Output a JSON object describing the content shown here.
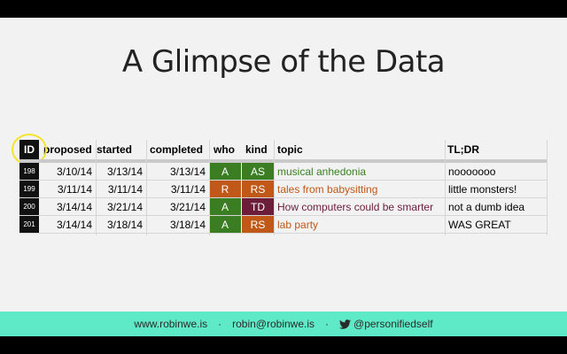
{
  "slide": {
    "title": "A Glimpse of the Data"
  },
  "table": {
    "headers": {
      "id": "ID",
      "proposed": "proposed",
      "started": "started",
      "completed": "completed",
      "who": "who",
      "kind": "kind",
      "topic": "topic",
      "tldr": "TL;DR"
    },
    "rows": [
      {
        "id": "198",
        "proposed": "3/10/14",
        "started": "3/13/14",
        "completed": "3/13/14",
        "who": "A",
        "kind": "AS",
        "topic": "musical anhedonia",
        "tldr": "nooooooo"
      },
      {
        "id": "199",
        "proposed": "3/11/14",
        "started": "3/11/14",
        "completed": "3/11/14",
        "who": "R",
        "kind": "RS",
        "topic": "tales from babysitting",
        "tldr": "little monsters!"
      },
      {
        "id": "200",
        "proposed": "3/14/14",
        "started": "3/21/14",
        "completed": "3/21/14",
        "who": "A",
        "kind": "TD",
        "topic": "How computers could be smarter",
        "tldr": "not a dumb idea"
      },
      {
        "id": "201",
        "proposed": "3/14/14",
        "started": "3/18/14",
        "completed": "3/18/14",
        "who": "A",
        "kind": "RS",
        "topic": "lab party",
        "tldr": "WAS GREAT"
      }
    ]
  },
  "colors": {
    "who_A": "#3a7d22",
    "who_R": "#c0581a",
    "kind_AS": "#3a7d22",
    "kind_RS": "#c0581a",
    "kind_TD": "#6b1d3a",
    "topic_AS": "#3a7d22",
    "topic_RS": "#c0581a",
    "topic_TD": "#6b1d3a",
    "footer_bg": "#5feac7",
    "highlight_circle": "#f5e42a"
  },
  "footer": {
    "website": "www.robinwe.is",
    "email": "robin@robinwe.is",
    "twitter": "@personifiedself",
    "separator": "·",
    "twitter_icon": "twitter-bird-icon"
  }
}
